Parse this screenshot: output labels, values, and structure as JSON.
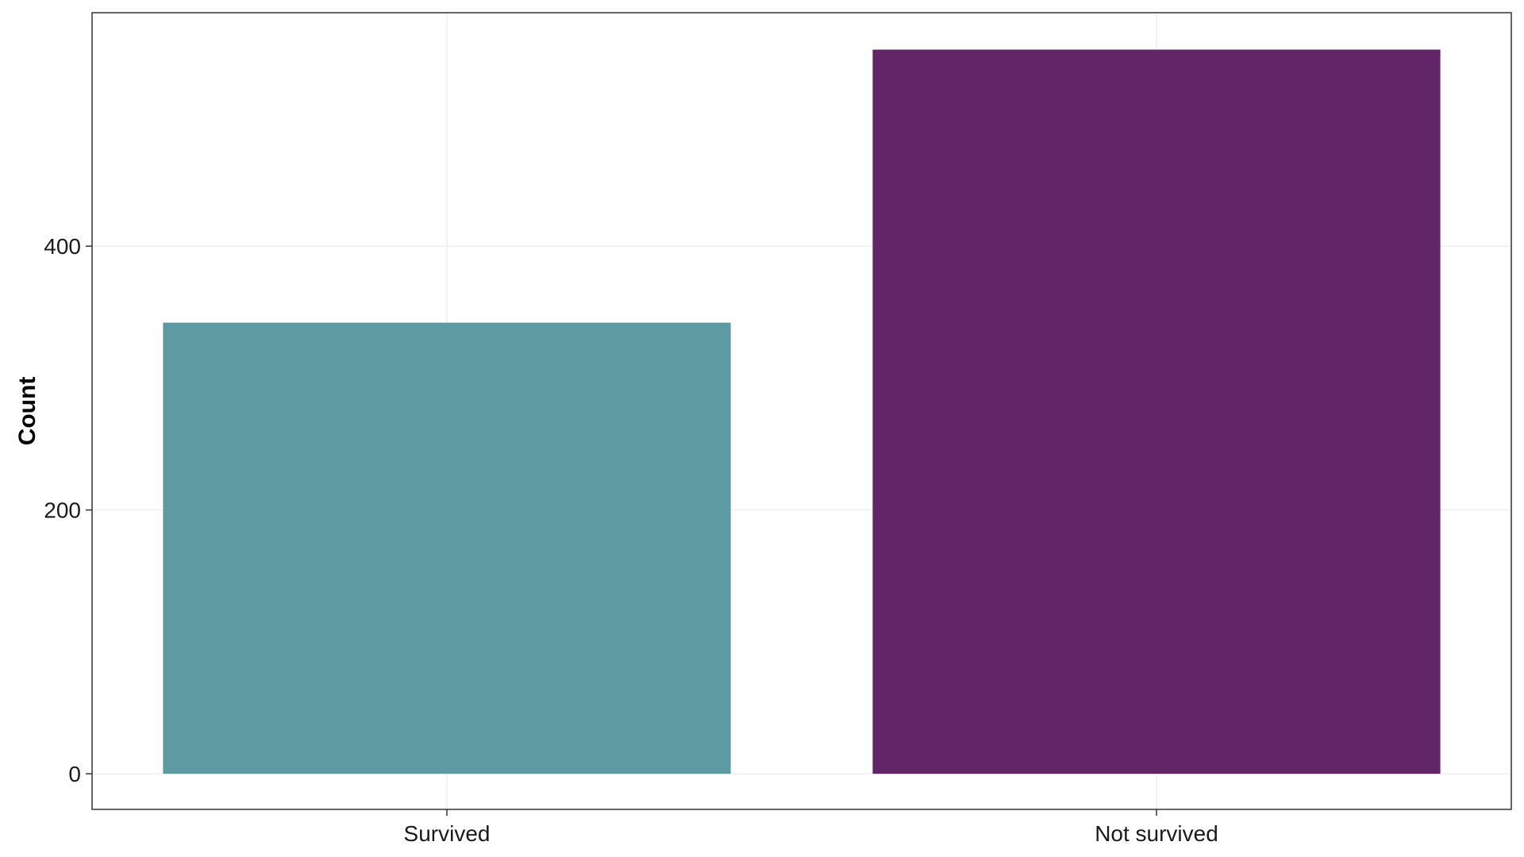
{
  "chart_data": {
    "type": "bar",
    "categories": [
      "Survived",
      "Not survived"
    ],
    "values": [
      342,
      549
    ],
    "xlabel": "",
    "ylabel": "Count",
    "ylim": [
      -27,
      577
    ],
    "yticks": [
      0,
      200,
      400
    ],
    "ytick_labels": [
      "0",
      "200",
      "400"
    ],
    "grid": true,
    "legend": "none",
    "colors": [
      "#5e9aa2",
      "#622568"
    ],
    "gridline_color": "#ebebeb",
    "frame_color": "#333333"
  }
}
